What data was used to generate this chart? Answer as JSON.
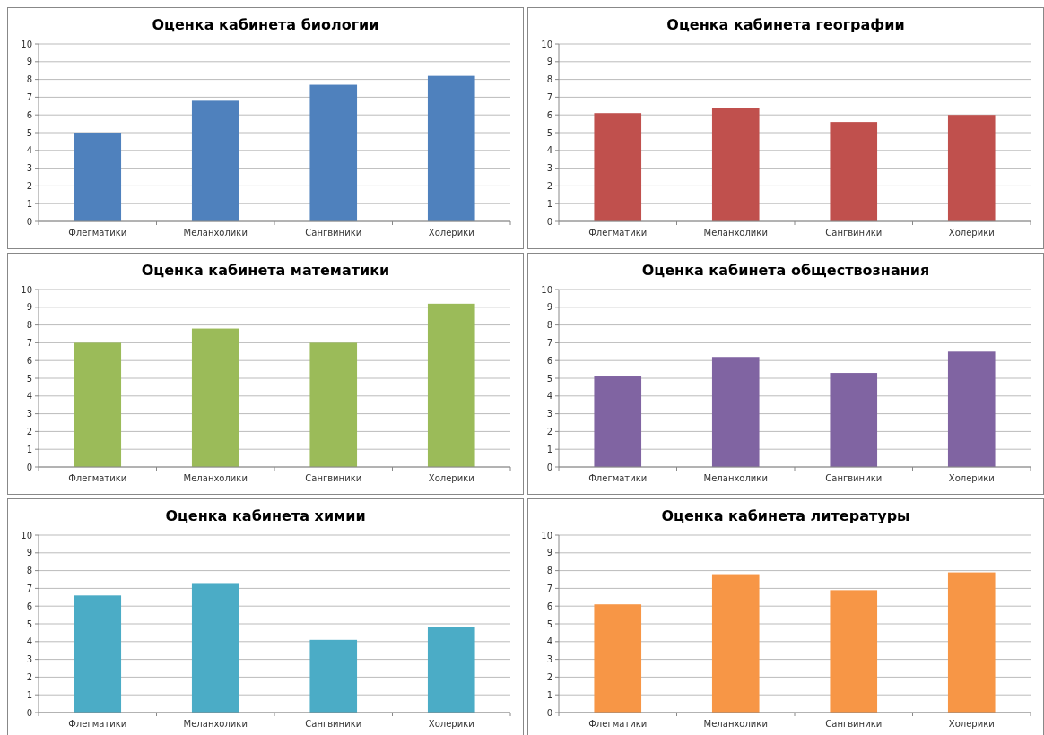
{
  "chart_data": [
    {
      "type": "bar",
      "title": "Оценка кабинета биологии",
      "categories": [
        "Флегматики",
        "Меланхолики",
        "Сангвиники",
        "Холерики"
      ],
      "values": [
        5.0,
        6.8,
        7.7,
        8.2
      ],
      "color": "#4f81bd",
      "ylim": [
        0,
        10
      ],
      "yticks": [
        0,
        1,
        2,
        3,
        4,
        5,
        6,
        7,
        8,
        9,
        10
      ],
      "grid": "y"
    },
    {
      "type": "bar",
      "title": "Оценка кабинета географии",
      "categories": [
        "Флегматики",
        "Меланхолики",
        "Сангвиники",
        "Холерики"
      ],
      "values": [
        6.1,
        6.4,
        5.6,
        6.0
      ],
      "color": "#c0504d",
      "ylim": [
        0,
        10
      ],
      "yticks": [
        0,
        1,
        2,
        3,
        4,
        5,
        6,
        7,
        8,
        9,
        10
      ],
      "grid": "y"
    },
    {
      "type": "bar",
      "title": "Оценка кабинета математики",
      "categories": [
        "Флегматики",
        "Меланхолики",
        "Сангвиники",
        "Холерики"
      ],
      "values": [
        7.0,
        7.8,
        7.0,
        9.2
      ],
      "color": "#9bbb59",
      "ylim": [
        0,
        10
      ],
      "yticks": [
        0,
        1,
        2,
        3,
        4,
        5,
        6,
        7,
        8,
        9,
        10
      ],
      "grid": "y"
    },
    {
      "type": "bar",
      "title": "Оценка кабинета обществознания",
      "categories": [
        "Флегматики",
        "Меланхолики",
        "Сангвиники",
        "Холерики"
      ],
      "values": [
        5.1,
        6.2,
        5.3,
        6.5
      ],
      "color": "#8064a2",
      "ylim": [
        0,
        10
      ],
      "yticks": [
        0,
        1,
        2,
        3,
        4,
        5,
        6,
        7,
        8,
        9,
        10
      ],
      "grid": "y"
    },
    {
      "type": "bar",
      "title": "Оценка кабинета химии",
      "categories": [
        "Флегматики",
        "Меланхолики",
        "Сангвиники",
        "Холерики"
      ],
      "values": [
        6.6,
        7.3,
        4.1,
        4.8
      ],
      "color": "#4bacc6",
      "ylim": [
        0,
        10
      ],
      "yticks": [
        0,
        1,
        2,
        3,
        4,
        5,
        6,
        7,
        8,
        9,
        10
      ],
      "grid": "y"
    },
    {
      "type": "bar",
      "title": "Оценка кабинета литературы",
      "categories": [
        "Флегматики",
        "Меланхолики",
        "Сангвиники",
        "Холерики"
      ],
      "values": [
        6.1,
        7.8,
        6.9,
        7.9
      ],
      "color": "#f79646",
      "ylim": [
        0,
        10
      ],
      "yticks": [
        0,
        1,
        2,
        3,
        4,
        5,
        6,
        7,
        8,
        9,
        10
      ],
      "grid": "y"
    }
  ]
}
